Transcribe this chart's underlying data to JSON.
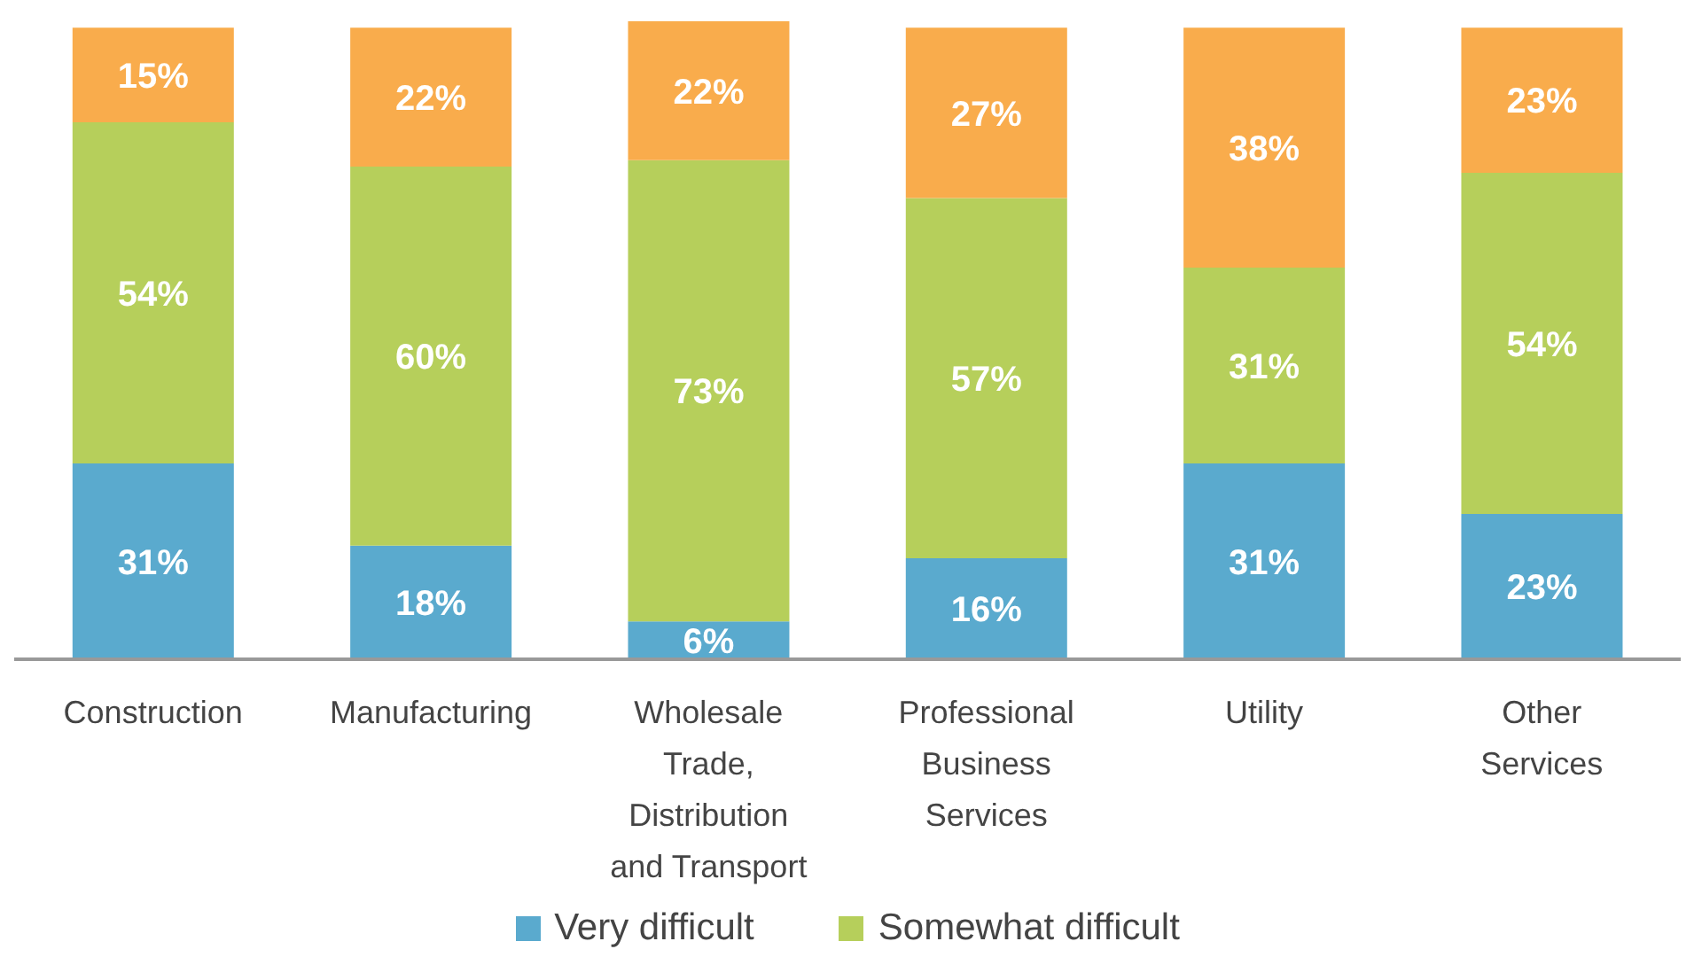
{
  "chart_data": {
    "type": "bar",
    "stacked": true,
    "categories": [
      "Construction",
      "Manufacturing",
      "Wholesale Trade, Distribution and Transport",
      "Professional Business Services",
      "Utility",
      "Other Services"
    ],
    "series": [
      {
        "name": "Very difficult",
        "color": "#5aaace",
        "values": [
          31,
          18,
          6,
          16,
          31,
          23
        ],
        "value_labels": [
          "31%",
          "18%",
          "6%",
          "16%",
          "31%",
          "23%"
        ]
      },
      {
        "name": "Somewhat difficult",
        "color": "#b6cf5b",
        "values": [
          54,
          60,
          73,
          57,
          31,
          54
        ],
        "value_labels": [
          "54%",
          "60%",
          "73%",
          "57%",
          "31%",
          "54%"
        ]
      },
      {
        "color": "#f9ac4c",
        "values": [
          15,
          22,
          22,
          27,
          38,
          23
        ],
        "value_labels": [
          "15%",
          "22%",
          "22%",
          "27%",
          "38%",
          "23%"
        ]
      }
    ],
    "legend": "bottom"
  }
}
